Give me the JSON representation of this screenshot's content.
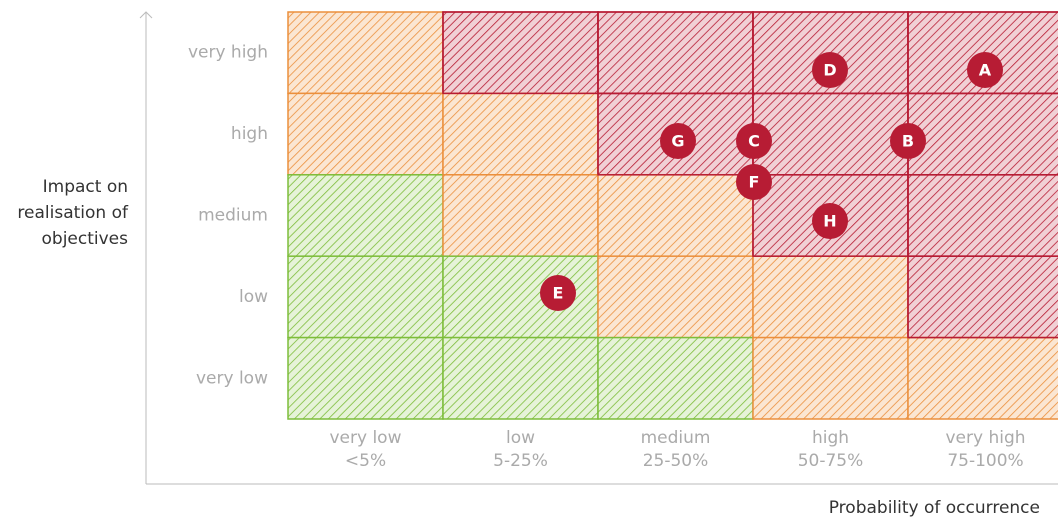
{
  "y_axis": {
    "label": [
      "Impact on",
      "realisation of",
      "objectives"
    ],
    "levels": [
      "very high",
      "high",
      "medium",
      "low",
      "very low"
    ]
  },
  "x_axis": {
    "label": "Probability of occurrence",
    "levels": [
      {
        "name": "very low",
        "range": "<5%"
      },
      {
        "name": "low",
        "range": "5-25%"
      },
      {
        "name": "medium",
        "range": "25-50%"
      },
      {
        "name": "high",
        "range": "50-75%"
      },
      {
        "name": "very high",
        "range": "75-100%"
      }
    ]
  },
  "risks": [
    "A",
    "B",
    "C",
    "D",
    "E",
    "F",
    "G",
    "H"
  ]
}
